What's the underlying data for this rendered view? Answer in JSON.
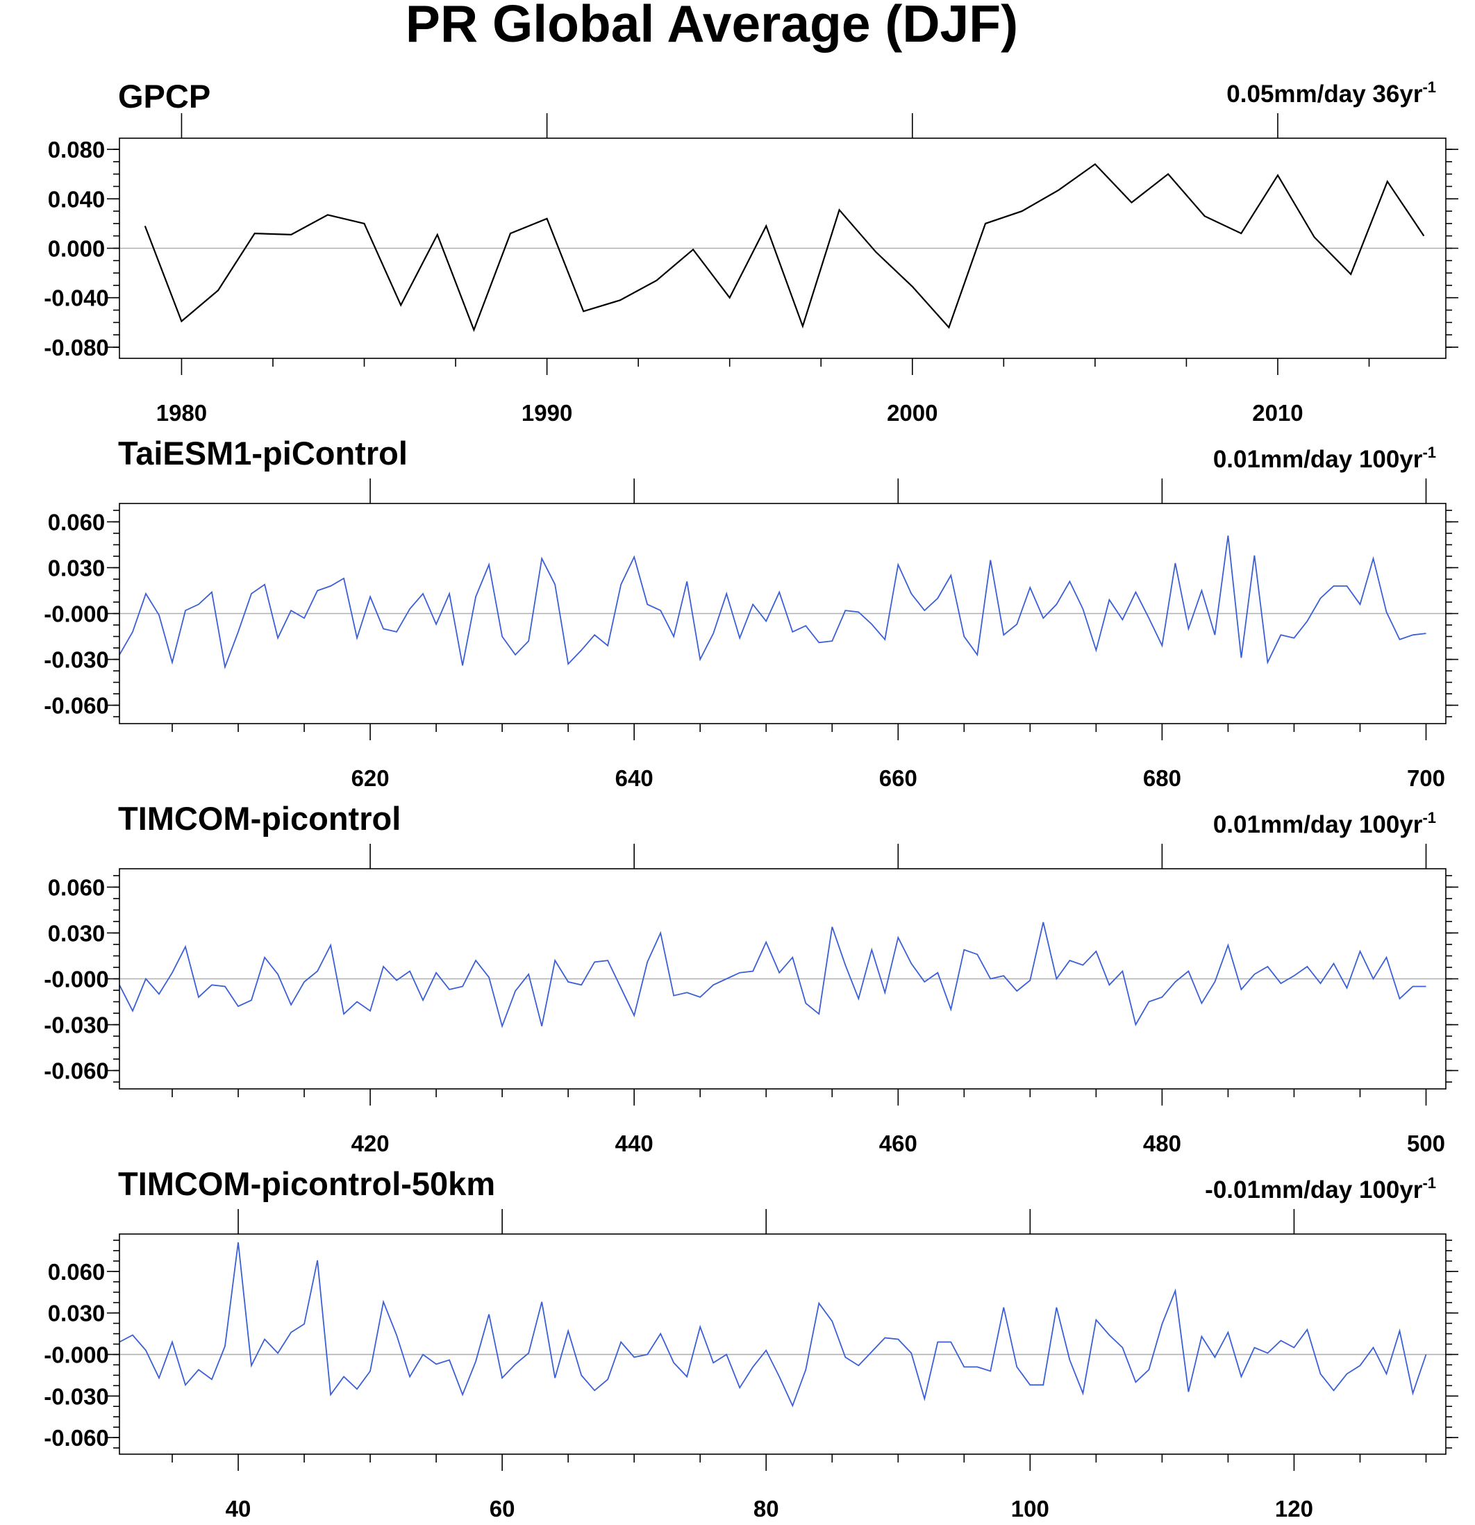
{
  "figure": {
    "title": "PR Global Average (DJF)"
  },
  "chart_data": [
    {
      "type": "line",
      "title": "GPCP",
      "trend_label": "0.05mm/day 36yr",
      "trend_exponent": "-1",
      "line_color": "#000000",
      "xlim": [
        1978.3,
        2014.6
      ],
      "ylim": [
        -0.089,
        0.089
      ],
      "x_ticks": [
        1980,
        1990,
        2000,
        2010
      ],
      "y_ticks": [
        0.08,
        0.04,
        0.0,
        -0.04,
        -0.08
      ],
      "y_tick_labels": [
        "0.080",
        "0.040",
        "0.000",
        "-0.040",
        "-0.080"
      ],
      "x_start": 1979,
      "x_step": 1,
      "values": [
        0.018,
        -0.059,
        -0.034,
        0.012,
        0.011,
        0.027,
        0.02,
        -0.046,
        0.011,
        -0.066,
        0.012,
        0.024,
        -0.051,
        -0.042,
        -0.026,
        -0.001,
        -0.04,
        0.018,
        -0.063,
        0.031,
        -0.003,
        -0.031,
        -0.064,
        0.02,
        0.03,
        0.047,
        0.068,
        0.037,
        0.06,
        0.026,
        0.012,
        0.059,
        0.009,
        -0.021,
        0.054,
        0.01
      ]
    },
    {
      "type": "line",
      "title": "TaiESM1-piControl",
      "trend_label": "0.01mm/day 100yr",
      "trend_exponent": "-1",
      "line_color": "#3a5fd6",
      "xlim": [
        601,
        701.5
      ],
      "ylim": [
        -0.072,
        0.072
      ],
      "x_ticks": [
        620,
        640,
        660,
        680,
        700
      ],
      "y_ticks": [
        0.06,
        0.03,
        0.0,
        -0.03,
        -0.06
      ],
      "y_tick_labels": [
        "0.060",
        "0.030",
        "-0.000",
        "-0.030",
        "-0.060"
      ],
      "x_start": 601,
      "x_step": 1,
      "values": [
        -0.027,
        -0.012,
        0.013,
        -0.001,
        -0.032,
        0.002,
        0.006,
        0.014,
        -0.035,
        -0.012,
        0.013,
        0.019,
        -0.016,
        0.002,
        -0.003,
        0.015,
        0.018,
        0.023,
        -0.016,
        0.011,
        -0.01,
        -0.012,
        0.003,
        0.013,
        -0.007,
        0.013,
        -0.034,
        0.011,
        0.032,
        -0.015,
        -0.027,
        -0.018,
        0.036,
        0.019,
        -0.033,
        -0.024,
        -0.014,
        -0.021,
        0.019,
        0.037,
        0.006,
        0.002,
        -0.015,
        0.021,
        -0.03,
        -0.013,
        0.013,
        -0.016,
        0.006,
        -0.005,
        0.014,
        -0.012,
        -0.008,
        -0.019,
        -0.018,
        0.002,
        0.001,
        -0.007,
        -0.017,
        0.032,
        0.013,
        0.002,
        0.01,
        0.025,
        -0.015,
        -0.027,
        0.035,
        -0.014,
        -0.007,
        0.017,
        -0.003,
        0.006,
        0.021,
        0.003,
        -0.024,
        0.009,
        -0.004,
        0.014,
        -0.003,
        -0.021,
        0.033,
        -0.01,
        0.015,
        -0.014,
        0.051,
        -0.029,
        0.038,
        -0.032,
        -0.014,
        -0.016,
        -0.005,
        0.01,
        0.018,
        0.018,
        0.006,
        0.036,
        0.001,
        -0.017,
        -0.014,
        -0.013
      ]
    },
    {
      "type": "line",
      "title": "TIMCOM-picontrol",
      "trend_label": "0.01mm/day 100yr",
      "trend_exponent": "-1",
      "line_color": "#3a5fd6",
      "xlim": [
        401,
        501.5
      ],
      "ylim": [
        -0.072,
        0.072
      ],
      "x_ticks": [
        420,
        440,
        460,
        480,
        500
      ],
      "y_ticks": [
        0.06,
        0.03,
        0.0,
        -0.03,
        -0.06
      ],
      "y_tick_labels": [
        "0.060",
        "0.030",
        "-0.000",
        "-0.030",
        "-0.060"
      ],
      "x_start": 401,
      "x_step": 1,
      "values": [
        -0.004,
        -0.021,
        0.0,
        -0.01,
        0.004,
        0.021,
        -0.012,
        -0.004,
        -0.005,
        -0.018,
        -0.014,
        0.014,
        0.003,
        -0.017,
        -0.002,
        0.005,
        0.022,
        -0.023,
        -0.015,
        -0.021,
        0.008,
        -0.001,
        0.005,
        -0.014,
        0.004,
        -0.007,
        -0.005,
        0.012,
        0.001,
        -0.031,
        -0.008,
        0.003,
        -0.031,
        0.012,
        -0.002,
        -0.004,
        0.011,
        0.012,
        -0.006,
        -0.024,
        0.011,
        0.03,
        -0.011,
        -0.009,
        -0.012,
        -0.004,
        0.0,
        0.004,
        0.005,
        0.024,
        0.004,
        0.014,
        -0.016,
        -0.023,
        0.034,
        0.009,
        -0.013,
        0.019,
        -0.009,
        0.027,
        0.01,
        -0.002,
        0.004,
        -0.02,
        0.019,
        0.016,
        0.0,
        0.002,
        -0.008,
        -0.001,
        0.037,
        0.0,
        0.012,
        0.009,
        0.018,
        -0.004,
        0.005,
        -0.03,
        -0.015,
        -0.012,
        -0.002,
        0.005,
        -0.016,
        -0.002,
        0.022,
        -0.007,
        0.003,
        0.008,
        -0.003,
        0.002,
        0.008,
        -0.003,
        0.01,
        -0.006,
        0.018,
        0.0,
        0.014,
        -0.013,
        -0.005,
        -0.005
      ]
    },
    {
      "type": "line",
      "title": "TIMCOM-picontrol-50km",
      "trend_label": "-0.01mm/day 100yr",
      "trend_exponent": "-1",
      "line_color": "#3a5fd6",
      "xlim": [
        31,
        131.5
      ],
      "ylim": [
        -0.072,
        0.087
      ],
      "x_ticks": [
        40,
        60,
        80,
        100,
        120
      ],
      "y_ticks": [
        0.06,
        0.03,
        0.0,
        -0.03,
        -0.06
      ],
      "y_tick_labels": [
        "0.060",
        "0.030",
        "-0.000",
        "-0.030",
        "-0.060"
      ],
      "x_start": 31,
      "x_step": 1,
      "values": [
        0.009,
        0.014,
        0.003,
        -0.017,
        0.009,
        -0.022,
        -0.011,
        -0.018,
        0.006,
        0.081,
        -0.008,
        0.011,
        0.001,
        0.016,
        0.022,
        0.068,
        -0.029,
        -0.016,
        -0.025,
        -0.012,
        0.038,
        0.014,
        -0.016,
        0.0,
        -0.007,
        -0.004,
        -0.029,
        -0.005,
        0.029,
        -0.017,
        -0.007,
        0.001,
        0.038,
        -0.017,
        0.017,
        -0.015,
        -0.026,
        -0.018,
        0.009,
        -0.002,
        0.0,
        0.015,
        -0.006,
        -0.016,
        0.02,
        -0.006,
        0.0,
        -0.024,
        -0.009,
        0.003,
        -0.016,
        -0.037,
        -0.011,
        0.037,
        0.024,
        -0.002,
        -0.008,
        0.002,
        0.012,
        0.011,
        0.001,
        -0.032,
        0.009,
        0.009,
        -0.009,
        -0.009,
        -0.012,
        0.034,
        -0.009,
        -0.022,
        -0.022,
        0.034,
        -0.004,
        -0.028,
        0.025,
        0.014,
        0.005,
        -0.02,
        -0.011,
        0.022,
        0.046,
        -0.027,
        0.013,
        -0.002,
        0.016,
        -0.016,
        0.005,
        0.001,
        0.01,
        0.005,
        0.018,
        -0.014,
        -0.026,
        -0.014,
        -0.008,
        0.005,
        -0.014,
        0.017,
        -0.028,
        0.0
      ]
    }
  ]
}
